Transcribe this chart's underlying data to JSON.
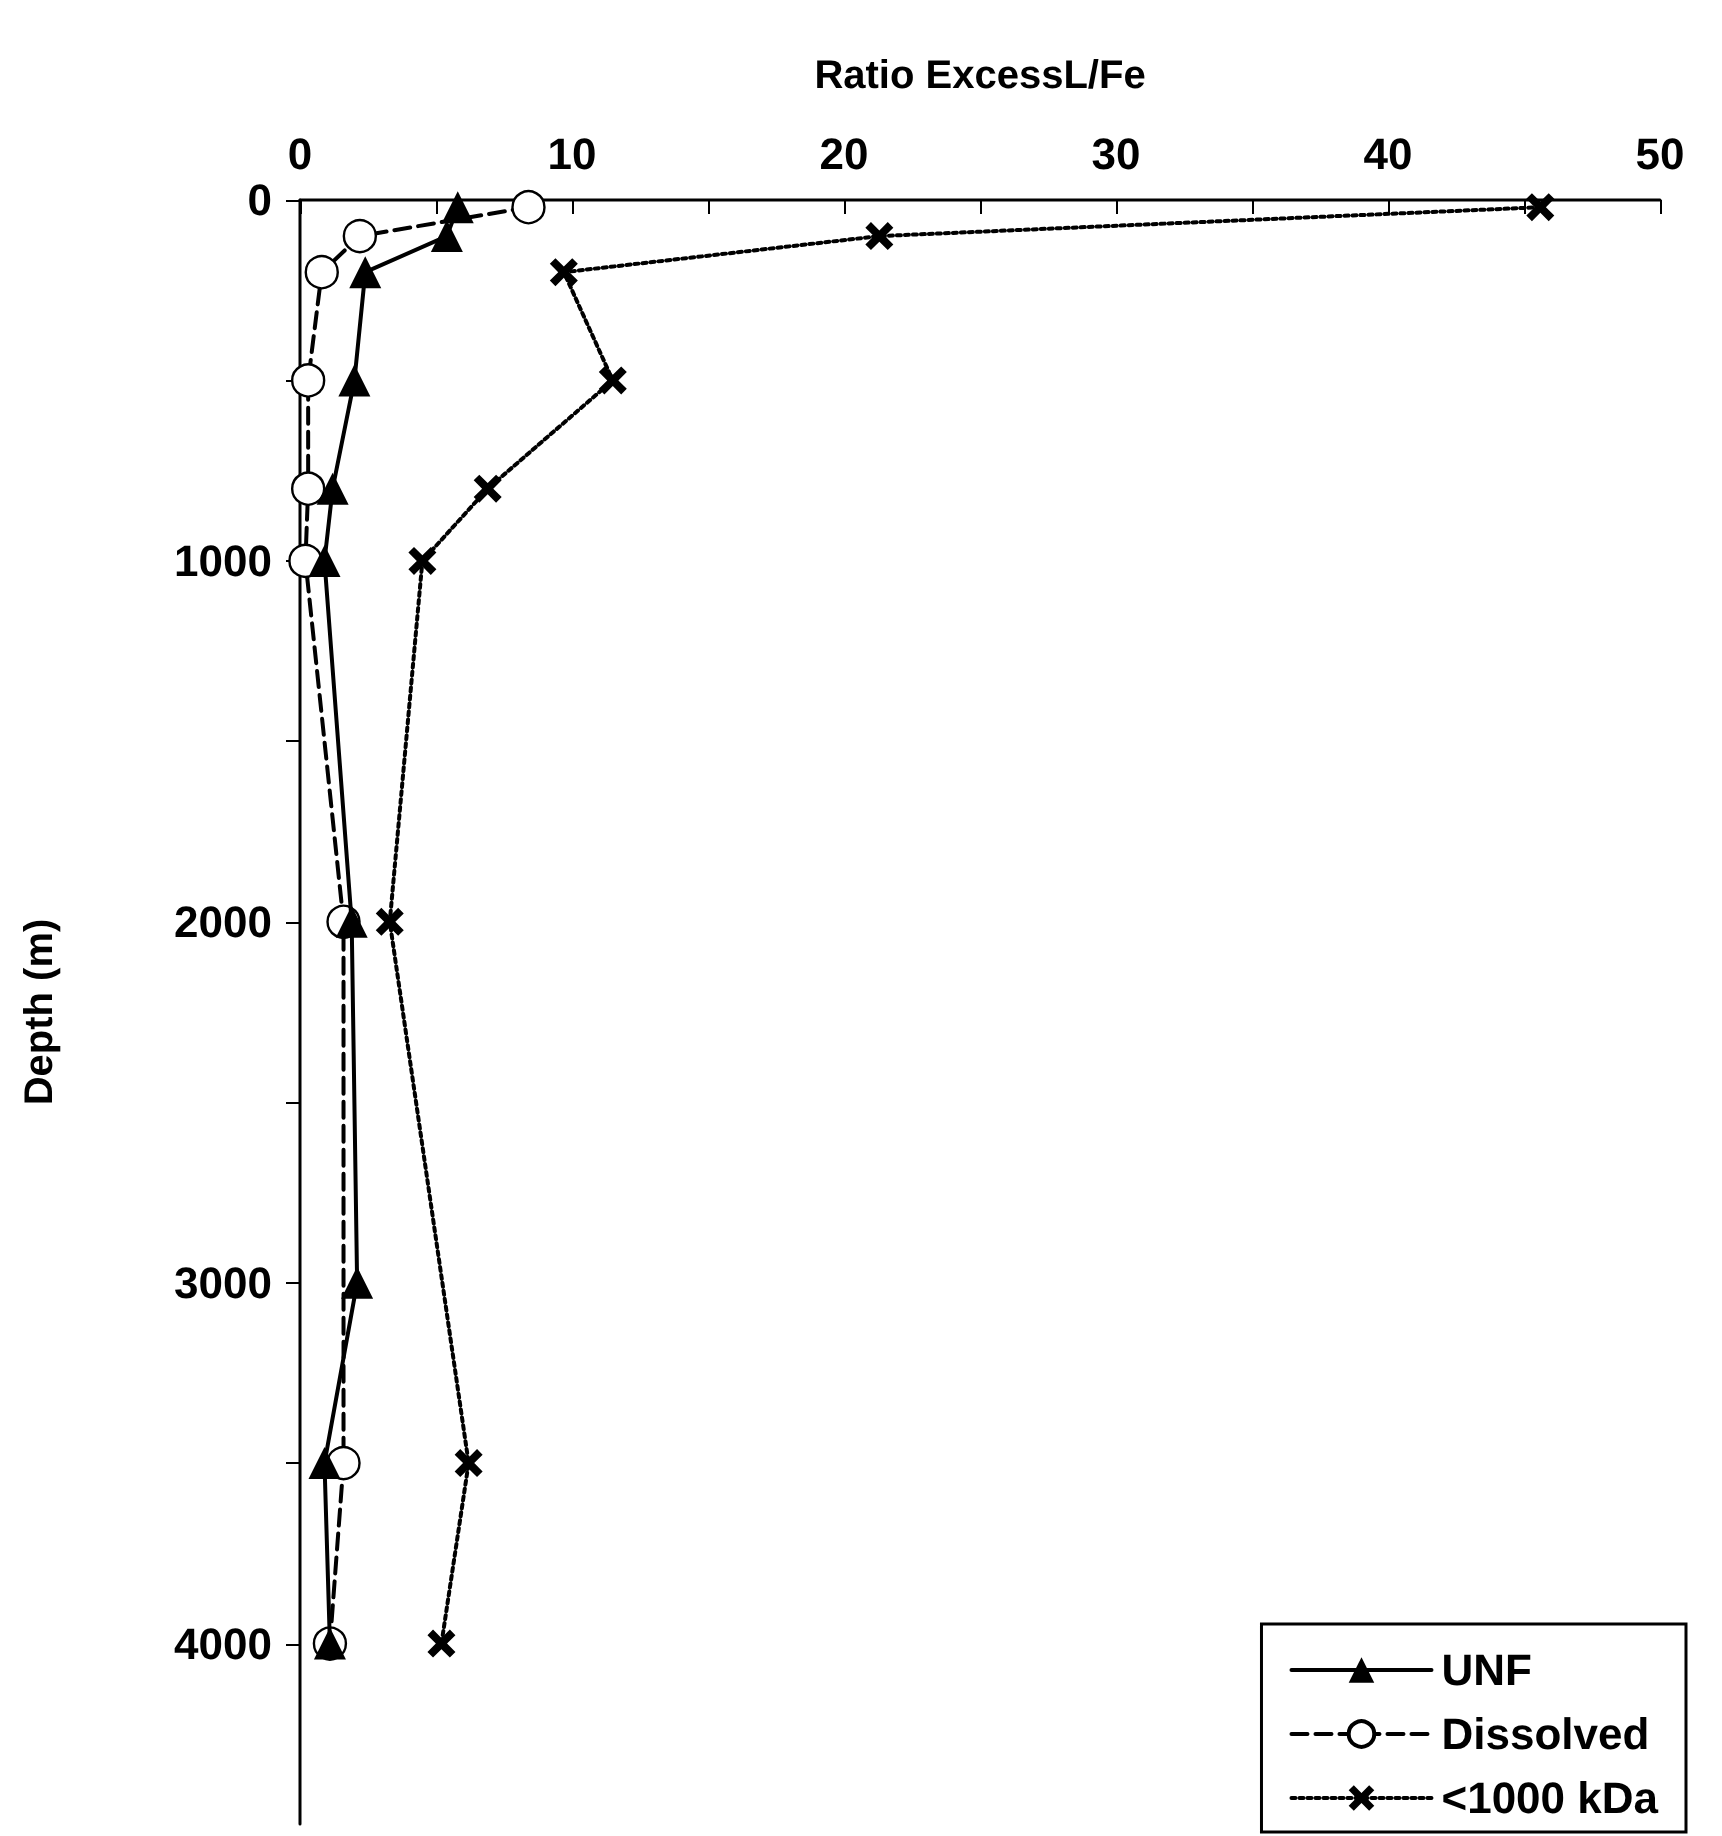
{
  "chart_data": {
    "type": "line",
    "xlabel": "Ratio ExcessL/Fe",
    "ylabel": "Depth (m)",
    "xlim": [
      0,
      50
    ],
    "xticks": [
      0,
      {
        "value": 5,
        "label": null
      },
      10,
      {
        "value": 15,
        "label": null
      },
      20,
      {
        "value": 25,
        "label": null
      },
      30,
      {
        "value": 35,
        "label": null
      },
      40,
      {
        "value": 45,
        "label": null
      },
      50
    ],
    "ylim": [
      4500,
      0
    ],
    "yticks": [
      0,
      {
        "value": 500,
        "label": null
      },
      1000,
      {
        "value": 1500,
        "label": null
      },
      2000,
      {
        "value": 2500,
        "label": null
      },
      3000,
      {
        "value": 3500,
        "label": null
      },
      4000
    ],
    "legend": "bottom right",
    "grid": false,
    "series": [
      {
        "name": "UNF",
        "color": "#000000",
        "marker": "triangle",
        "line_style": "solid",
        "x": [
          5.8,
          5.4,
          2.4,
          2.0,
          1.2,
          0.9,
          1.9,
          2.1,
          0.9,
          1.1
        ],
        "values": [
          20,
          100,
          200,
          500,
          800,
          1000,
          2000,
          3000,
          3500,
          4000
        ]
      },
      {
        "name": "Dissolved",
        "color": "#000000",
        "marker": "circle",
        "line_style": "dashed",
        "x": [
          8.4,
          2.2,
          0.8,
          0.3,
          0.3,
          0.2,
          1.6,
          1.6,
          1.1
        ],
        "values": [
          20,
          100,
          200,
          500,
          800,
          1000,
          2000,
          3500,
          4000
        ]
      },
      {
        "name": "<1000 kDa",
        "color": "#000000",
        "marker": "cross",
        "line_style": "dotted",
        "x": [
          45.6,
          21.3,
          9.7,
          11.5,
          6.9,
          4.5,
          3.3,
          6.2,
          5.2
        ],
        "values": [
          20,
          100,
          200,
          500,
          800,
          1000,
          2000,
          3500,
          4000
        ]
      }
    ]
  }
}
